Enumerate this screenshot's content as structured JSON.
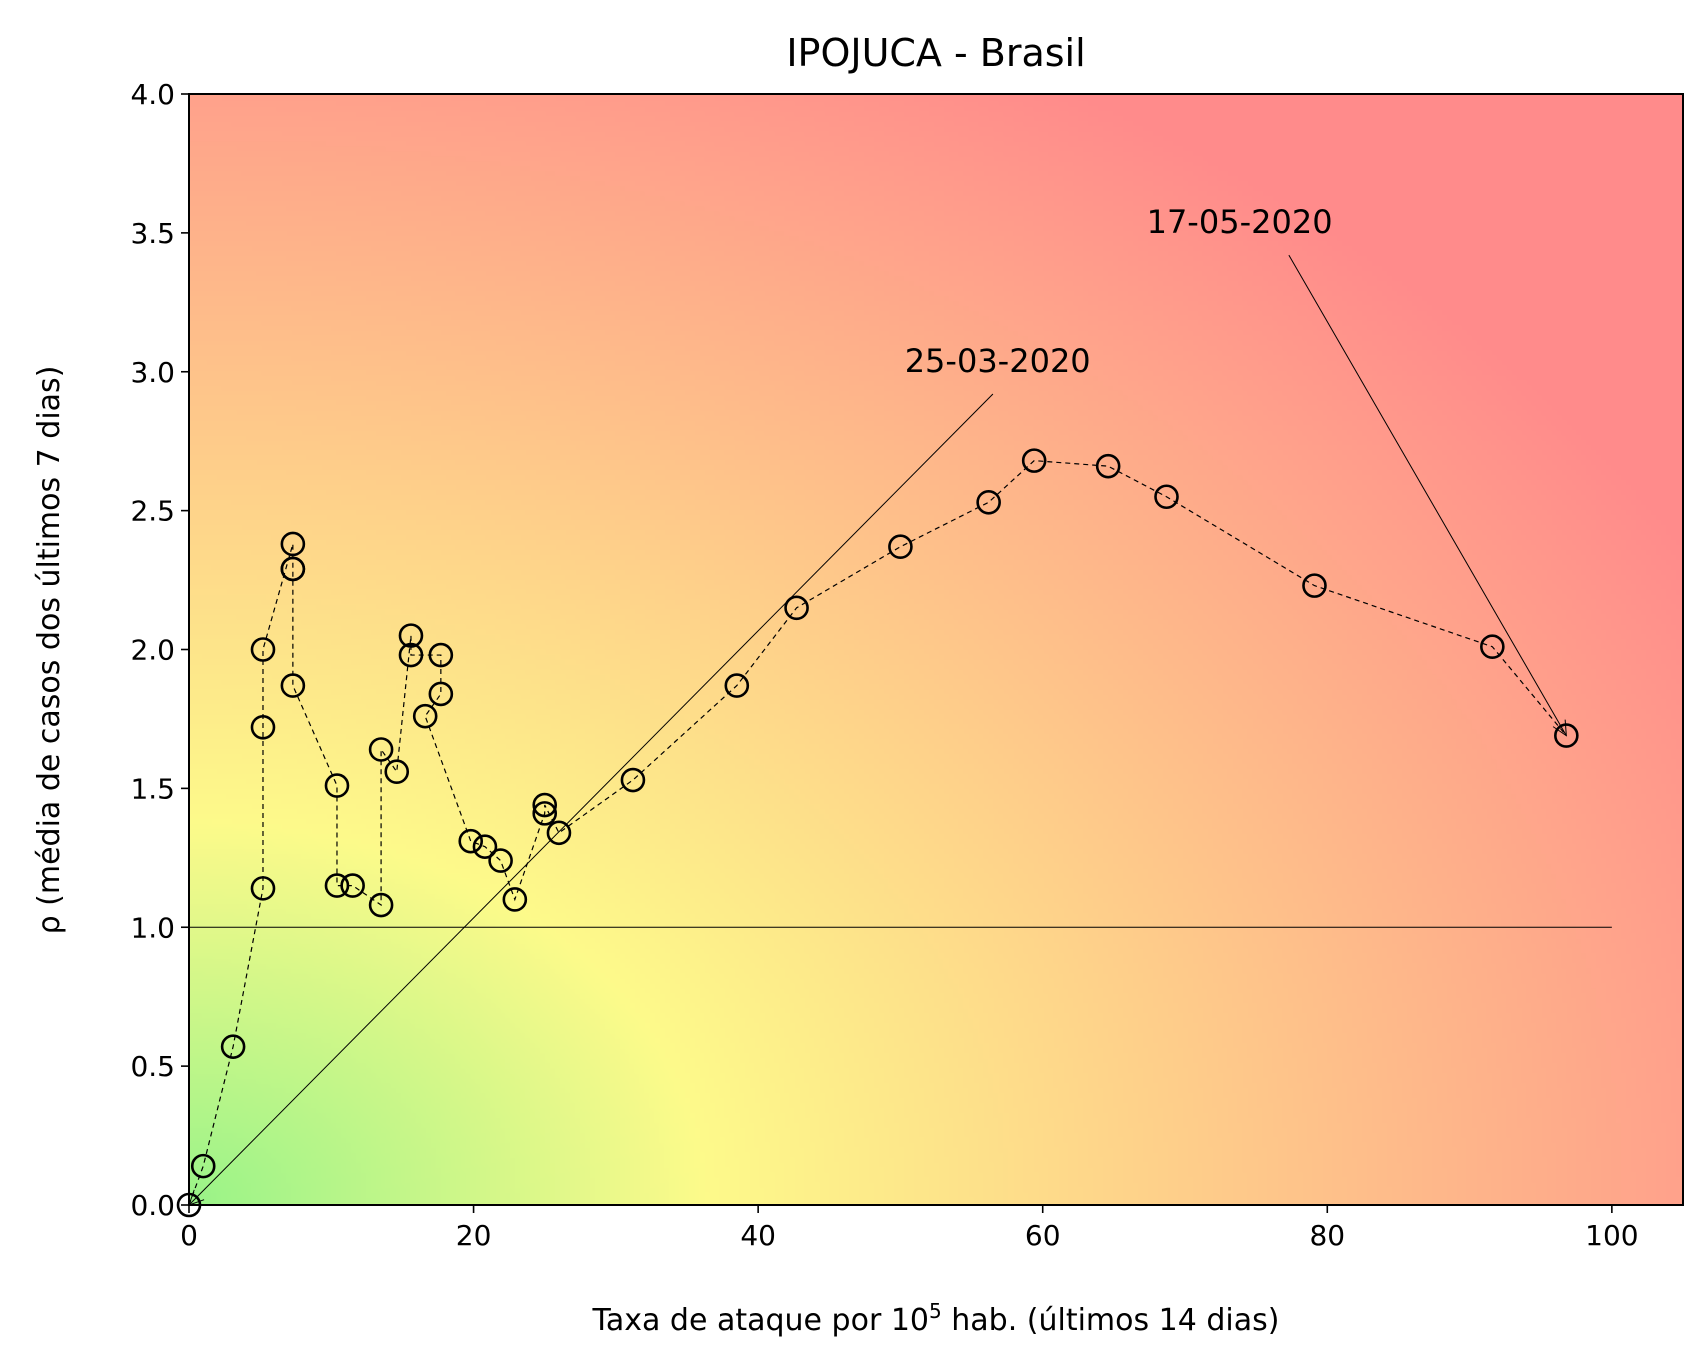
{
  "chart_data": {
    "type": "scatter",
    "title": "IPOJUCA - Brasil",
    "xlabel_prefix": "Taxa de ataque por 10",
    "xlabel_sup": "5",
    "xlabel_suffix": " hab. (últimos 14 dias)",
    "ylabel": "ρ (média de casos dos últimos 7 dias)",
    "xlim": [
      0,
      105
    ],
    "ylim": [
      0,
      4.0
    ],
    "xticks": [
      0,
      20,
      40,
      60,
      80,
      100
    ],
    "xtick_labels": [
      "0",
      "20",
      "40",
      "60",
      "80",
      "100"
    ],
    "yticks": [
      0.0,
      0.5,
      1.0,
      1.5,
      2.0,
      2.5,
      3.0,
      3.5,
      4.0
    ],
    "ytick_labels": [
      "0.0",
      "0.5",
      "1.0",
      "1.5",
      "2.0",
      "2.5",
      "3.0",
      "3.5",
      "4.0"
    ],
    "grid": false,
    "background": "risk gradient: green (low x, low y) → yellow → orange → red (high x, high y)",
    "colors": {
      "green": "#88f288",
      "yellow": "#fdfa8a",
      "orange": "#fec38a",
      "red": "#ff8b8b"
    },
    "reference_line": {
      "x": [
        0,
        100
      ],
      "y": [
        1.0,
        1.0
      ]
    },
    "points": [
      [
        0.0,
        0.0
      ],
      [
        1.0,
        0.14
      ],
      [
        3.1,
        0.57
      ],
      [
        5.2,
        1.14
      ],
      [
        5.2,
        1.72
      ],
      [
        5.2,
        2.0
      ],
      [
        7.3,
        2.38
      ],
      [
        7.3,
        2.29
      ],
      [
        7.3,
        2.29
      ],
      [
        7.3,
        1.87
      ],
      [
        10.4,
        1.51
      ],
      [
        10.4,
        1.15
      ],
      [
        11.5,
        1.15
      ],
      [
        13.5,
        1.08
      ],
      [
        13.5,
        1.64
      ],
      [
        14.6,
        1.56
      ],
      [
        15.6,
        2.05
      ],
      [
        15.6,
        1.98
      ],
      [
        17.7,
        1.98
      ],
      [
        17.7,
        1.84
      ],
      [
        16.6,
        1.76
      ],
      [
        19.8,
        1.31
      ],
      [
        20.8,
        1.29
      ],
      [
        21.9,
        1.24
      ],
      [
        22.9,
        1.1
      ],
      [
        25.0,
        1.41
      ],
      [
        25.0,
        1.44
      ],
      [
        26.0,
        1.34
      ],
      [
        31.2,
        1.53
      ],
      [
        38.5,
        1.87
      ],
      [
        42.7,
        2.15
      ],
      [
        50.0,
        2.37
      ],
      [
        56.2,
        2.53
      ],
      [
        59.4,
        2.68
      ],
      [
        64.6,
        2.66
      ],
      [
        68.7,
        2.55
      ],
      [
        79.1,
        2.23
      ],
      [
        91.6,
        2.01
      ],
      [
        96.8,
        1.69
      ]
    ],
    "annotations": [
      {
        "text": "25-03-2020",
        "text_at": [
          50.3,
          3.0
        ],
        "line_from": [
          56.5,
          2.92
        ],
        "arrow_to": [
          0.0,
          0.0
        ]
      },
      {
        "text": "17-05-2020",
        "text_at": [
          67.3,
          3.5
        ],
        "line_from": [
          77.3,
          3.42
        ],
        "arrow_to": [
          96.8,
          1.69
        ]
      }
    ]
  }
}
